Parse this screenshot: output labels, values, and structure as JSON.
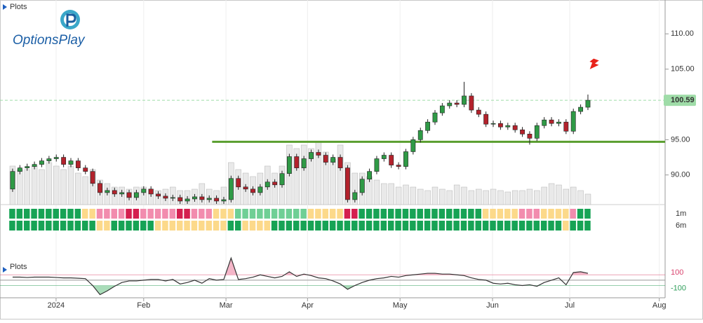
{
  "header": {
    "plots_label": "Plots",
    "logo": "OptionsPlay"
  },
  "chart_data": {
    "type": "candlestick",
    "open": [
      88,
      90.5,
      91,
      91.2,
      91.5,
      92,
      92.3,
      92.5,
      91.5,
      92,
      91,
      90.5,
      88.8,
      87.5,
      87.8,
      87.3,
      87.5,
      86.8,
      87.5,
      88,
      87.3,
      87,
      86.7,
      86.8,
      86.3,
      86.6,
      86.9,
      86.5,
      86.7,
      86.3,
      86.5,
      89.5,
      88.3,
      88,
      87.5,
      88.3,
      89,
      88.6,
      90.2,
      92.6,
      91,
      92.3,
      93.2,
      92.8,
      91.8,
      92.5,
      91,
      86.5,
      87.5,
      89.4,
      90.5,
      92.3,
      92.8,
      91.4,
      91.2,
      93.3,
      95,
      96.3,
      97.5,
      98.8,
      99.8,
      100.2,
      100,
      101.2,
      99.2,
      98.6,
      97.2,
      97.3,
      96.8,
      97,
      96.4,
      95.8,
      95.2,
      97,
      97.8,
      97.3,
      97.5,
      96.2,
      99,
      99.6
    ],
    "high": [
      90.9,
      91.4,
      91.6,
      91.9,
      92.4,
      92.7,
      92.9,
      92.9,
      92.4,
      92.4,
      91.4,
      90.9,
      89.2,
      88.2,
      88.2,
      87.9,
      87.9,
      87.9,
      88.4,
      88.4,
      87.7,
      87.4,
      87.2,
      87.2,
      87,
      87.3,
      87.3,
      87.1,
      87.1,
      86.9,
      89.9,
      89.9,
      88.7,
      88.4,
      88.7,
      89.4,
      89.4,
      90.6,
      93,
      93,
      92.7,
      93.6,
      93.6,
      93.2,
      92.9,
      92.9,
      91.4,
      87.9,
      89.8,
      90.9,
      92.7,
      93.2,
      93.2,
      91.8,
      93.7,
      95.4,
      96.7,
      97.9,
      99.2,
      100.2,
      100.6,
      100.6,
      103.2,
      101.6,
      99.6,
      99,
      97.7,
      97.7,
      97.4,
      97.4,
      96.8,
      96.2,
      97.4,
      98.2,
      98.2,
      97.9,
      97.9,
      99.4,
      100,
      101.4
    ],
    "low": [
      87.6,
      90.1,
      90.6,
      90.8,
      91.1,
      91.6,
      91.9,
      91.1,
      91.1,
      90.6,
      90.1,
      88.4,
      87.1,
      87.1,
      86.9,
      86.9,
      86.4,
      86.4,
      87.1,
      86.9,
      86.6,
      86.3,
      86.3,
      85.9,
      85.9,
      86.2,
      86.1,
      86.1,
      85.9,
      85.9,
      86.1,
      87.9,
      87.6,
      87.1,
      87.1,
      87.9,
      88.2,
      88.2,
      89.8,
      90.6,
      90.6,
      91.9,
      92.4,
      91.4,
      91.4,
      90.6,
      86.1,
      86.1,
      87.1,
      89,
      90.1,
      91.9,
      91,
      90.8,
      90.8,
      92.9,
      94.6,
      95.9,
      97.1,
      98.4,
      99.4,
      99.6,
      99.6,
      98.8,
      98.2,
      96.8,
      96.8,
      96.4,
      96.4,
      96,
      95.4,
      94.3,
      94.8,
      96.6,
      96.9,
      96.9,
      95.8,
      95.8,
      98.6,
      99.2
    ],
    "close": [
      90.5,
      91,
      91.2,
      91.5,
      92,
      92.3,
      92.5,
      91.5,
      92,
      91,
      90.5,
      88.8,
      87.5,
      87.8,
      87.3,
      87.5,
      86.8,
      87.5,
      88,
      87.3,
      87,
      86.7,
      86.8,
      86.3,
      86.6,
      86.9,
      86.5,
      86.7,
      86.3,
      86.5,
      89.5,
      88.3,
      88,
      87.5,
      88.3,
      89,
      88.6,
      90.2,
      92.6,
      91,
      92.3,
      93.2,
      92.8,
      91.8,
      92.5,
      91,
      86.5,
      87.5,
      89.4,
      90.5,
      92.3,
      92.8,
      91.4,
      91.2,
      93.3,
      95,
      96.3,
      97.5,
      98.8,
      99.8,
      100.2,
      100,
      101.2,
      99.2,
      98.6,
      97.2,
      97.3,
      96.8,
      97,
      96.4,
      95.8,
      95.2,
      97,
      97.8,
      97.3,
      97.5,
      96.2,
      99,
      99.6,
      100.59
    ],
    "volume": [
      55,
      50,
      50,
      55,
      50,
      60,
      55,
      50,
      55,
      45,
      40,
      50,
      35,
      30,
      25,
      25,
      22,
      25,
      25,
      22,
      20,
      22,
      25,
      20,
      20,
      22,
      30,
      22,
      20,
      25,
      60,
      50,
      45,
      40,
      45,
      55,
      45,
      55,
      85,
      80,
      85,
      80,
      90,
      75,
      65,
      85,
      60,
      45,
      45,
      40,
      35,
      30,
      30,
      25,
      28,
      25,
      22,
      20,
      25,
      22,
      20,
      28,
      25,
      20,
      22,
      20,
      22,
      20,
      18,
      20,
      20,
      22,
      20,
      25,
      30,
      28,
      22,
      25,
      20,
      15
    ],
    "volume_lim": [
      0,
      100
    ],
    "colors": {
      "up": "#2f9a46",
      "down": "#b3222c",
      "volume": "#e9e9e9",
      "support": "#5a9e2f",
      "last": "#9fdca8"
    },
    "ylim": [
      85.8,
      114.8
    ],
    "yticks": [
      {
        "value": 90,
        "label": "90.00"
      },
      {
        "value": 95,
        "label": "95.00"
      },
      {
        "value": 105,
        "label": "105.00"
      },
      {
        "value": 110,
        "label": "110.00"
      }
    ],
    "xlim": [
      -1.73,
      89.6
    ],
    "xticks": [
      {
        "value": 5.97,
        "label": "2024"
      },
      {
        "value": 18.0,
        "label": "Feb"
      },
      {
        "value": 29.3,
        "label": "Mar"
      },
      {
        "value": 40.5,
        "label": "Apr"
      },
      {
        "value": 53.2,
        "label": "May"
      },
      {
        "value": 65.9,
        "label": "Jun"
      },
      {
        "value": 76.5,
        "label": "Jul"
      },
      {
        "value": 88.8,
        "label": "Aug"
      }
    ],
    "last_price": 100.59,
    "support_level": 94.7,
    "support_start": 27.4,
    "strips": [
      {
        "label": "1m",
        "runs": [
          {
            "n": 10,
            "color": "#17a355"
          },
          {
            "n": 2,
            "color": "#fcd98a"
          },
          {
            "n": 4,
            "color": "#f28cae"
          },
          {
            "n": 2,
            "color": "#d41f4f"
          },
          {
            "n": 5,
            "color": "#f28cae"
          },
          {
            "n": 2,
            "color": "#d41f4f"
          },
          {
            "n": 3,
            "color": "#f28cae"
          },
          {
            "n": 3,
            "color": "#fcd98a"
          },
          {
            "n": 10,
            "color": "#6fcf95"
          },
          {
            "n": 5,
            "color": "#fcd98a"
          },
          {
            "n": 2,
            "color": "#d41f4f"
          },
          {
            "n": 17,
            "color": "#17a355"
          },
          {
            "n": 5,
            "color": "#fcd98a"
          },
          {
            "n": 3,
            "color": "#f28cae"
          },
          {
            "n": 4,
            "color": "#fcd98a"
          },
          {
            "n": 1,
            "color": "#f28cae"
          },
          {
            "n": 2,
            "color": "#17a355"
          }
        ]
      },
      {
        "label": "6m",
        "runs": [
          {
            "n": 12,
            "color": "#17a355"
          },
          {
            "n": 2,
            "color": "#fcd98a"
          },
          {
            "n": 6,
            "color": "#17a355"
          },
          {
            "n": 10,
            "color": "#fcd98a"
          },
          {
            "n": 2,
            "color": "#17a355"
          },
          {
            "n": 4,
            "color": "#fcd98a"
          },
          {
            "n": 40,
            "color": "#17a355"
          },
          {
            "n": 1,
            "color": "#fcd98a"
          },
          {
            "n": 3,
            "color": "#17a355"
          }
        ]
      }
    ],
    "oscillator": {
      "label": "Plots",
      "values": [
        57,
        57,
        50,
        57,
        57,
        57,
        50,
        43,
        43,
        36,
        29,
        -100,
        -270,
        -200,
        -114,
        -43,
        -14,
        -14,
        0,
        14,
        14,
        -14,
        14,
        -71,
        -43,
        0,
        -57,
        29,
        0,
        14,
        414,
        14,
        29,
        57,
        100,
        71,
        43,
        71,
        157,
        71,
        114,
        86,
        43,
        29,
        -14,
        -71,
        -170,
        -100,
        -43,
        0,
        29,
        43,
        71,
        57,
        86,
        100,
        114,
        129,
        129,
        114,
        114,
        100,
        86,
        43,
        14,
        0,
        -57,
        -71,
        -57,
        -86,
        -100,
        -86,
        -114,
        -43,
        0,
        43,
        -86,
        143,
        157,
        129
      ],
      "ylim": [
        -329,
        457
      ],
      "yticks": [
        {
          "value": 100,
          "color": "#d9436e"
        },
        {
          "value": -100,
          "color": "#2e9e5a"
        }
      ]
    }
  }
}
